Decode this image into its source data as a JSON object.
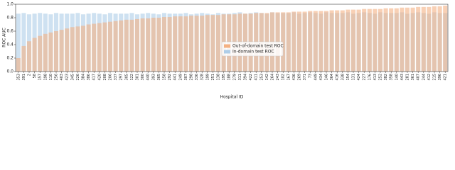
{
  "chart_data": {
    "type": "bar",
    "xlabel": "Hospital ID",
    "ylabel": "ROC AUC",
    "categories": [
      "353",
      "391",
      "2",
      "58",
      "157",
      "198",
      "110",
      "256",
      "403",
      "423",
      "345",
      "226",
      "384",
      "386",
      "417",
      "420",
      "208",
      "206",
      "337",
      "297",
      "305",
      "122",
      "301",
      "300",
      "440",
      "393",
      "365",
      "158",
      "292",
      "441",
      "249",
      "307",
      "298",
      "336",
      "328",
      "199",
      "251",
      "138",
      "195",
      "188",
      "279",
      "311",
      "394",
      "422",
      "411",
      "253",
      "142",
      "264",
      "243",
      "102",
      "167",
      "436",
      "269",
      "371",
      "73",
      "449",
      "434",
      "146",
      "364",
      "416",
      "338",
      "154",
      "131",
      "424",
      "227",
      "176",
      "413",
      "252",
      "382",
      "358",
      "140",
      "443",
      "281",
      "361",
      "407",
      "244",
      "412",
      "215",
      "396",
      "421"
    ],
    "series": [
      {
        "name": "In-domain test ROC",
        "color": "#aecde8",
        "values": [
          0.86,
          0.87,
          0.85,
          0.86,
          0.87,
          0.86,
          0.85,
          0.87,
          0.86,
          0.86,
          0.86,
          0.87,
          0.85,
          0.86,
          0.87,
          0.86,
          0.85,
          0.87,
          0.86,
          0.86,
          0.86,
          0.87,
          0.85,
          0.86,
          0.87,
          0.86,
          0.85,
          0.87,
          0.86,
          0.86,
          0.86,
          0.87,
          0.85,
          0.86,
          0.87,
          0.86,
          0.85,
          0.87,
          0.86,
          0.86,
          0.87,
          0.88,
          0.86,
          0.87,
          0.88,
          0.87,
          0.86,
          0.88,
          0.87,
          0.87,
          0.87,
          0.88,
          0.86,
          0.87,
          0.88,
          0.87,
          0.86,
          0.88,
          0.87,
          0.87,
          0.87,
          0.88,
          0.86,
          0.87,
          0.88,
          0.87,
          0.86,
          0.88,
          0.87,
          0.87,
          0.87,
          0.88,
          0.86,
          0.87,
          0.88,
          0.87,
          0.86,
          0.88,
          0.87,
          0.87
        ]
      },
      {
        "name": "Out-of-domain test ROC",
        "color": "#f4b183",
        "values": [
          0.2,
          0.38,
          0.45,
          0.5,
          0.53,
          0.56,
          0.58,
          0.6,
          0.62,
          0.64,
          0.66,
          0.67,
          0.68,
          0.7,
          0.71,
          0.72,
          0.73,
          0.74,
          0.75,
          0.76,
          0.77,
          0.77,
          0.78,
          0.79,
          0.79,
          0.8,
          0.8,
          0.81,
          0.81,
          0.82,
          0.82,
          0.82,
          0.83,
          0.83,
          0.83,
          0.84,
          0.84,
          0.84,
          0.85,
          0.85,
          0.85,
          0.86,
          0.86,
          0.86,
          0.87,
          0.87,
          0.87,
          0.88,
          0.88,
          0.88,
          0.88,
          0.89,
          0.89,
          0.89,
          0.9,
          0.9,
          0.9,
          0.9,
          0.91,
          0.91,
          0.91,
          0.92,
          0.92,
          0.92,
          0.93,
          0.93,
          0.93,
          0.93,
          0.94,
          0.94,
          0.94,
          0.95,
          0.95,
          0.95,
          0.96,
          0.96,
          0.96,
          0.97,
          0.97,
          0.98
        ]
      }
    ],
    "ylim": [
      0,
      1.0
    ],
    "yticks": [
      {
        "value": 0,
        "label": "0.0"
      },
      {
        "value": 0.2,
        "label": "0.2"
      },
      {
        "value": 0.4,
        "label": "0.4"
      },
      {
        "value": 0.6,
        "label": "0.6"
      },
      {
        "value": 0.8,
        "label": "0.8"
      },
      {
        "value": 1.0,
        "label": "1.0"
      }
    ],
    "legend": "center"
  }
}
